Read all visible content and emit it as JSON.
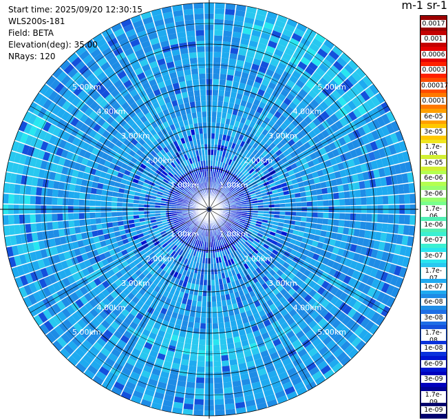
{
  "info": {
    "start_time": "Start time: 2025/09/20 12:30:15",
    "instrument": "WLS200s-181",
    "field": "Field: BETA",
    "elevation": "Elevation(deg): 35.00",
    "nrays": "NRays: 120"
  },
  "colorbar": {
    "title": "m-1 sr-1",
    "labels": [
      "0.0017",
      "0.001",
      "0.0006",
      "0.0003",
      "0.00017",
      "0.0001",
      "6e-05",
      "3e-05",
      "1.7e-05",
      "1e-05",
      "6e-06",
      "3e-06",
      "1.7e-06",
      "1e-06",
      "6e-07",
      "3e-07",
      "1.7e-07",
      "1e-07",
      "6e-08",
      "3e-08",
      "1.7e-08",
      "1e-08",
      "6e-09",
      "3e-09",
      "1.7e-09",
      "1e-09"
    ],
    "colors": [
      "#9c0000",
      "#c40000",
      "#e60000",
      "#ff2000",
      "#ff4b00",
      "#ff7800",
      "#ffa000",
      "#ffc800",
      "#f0e61e",
      "#d2f032",
      "#b4ff50",
      "#96ff6e",
      "#78ff8c",
      "#50f0b4",
      "#3cf0d2",
      "#28e6f0",
      "#28c8f0",
      "#1eaaf0",
      "#1e8ce6",
      "#1e6ee6",
      "#1450dc",
      "#0a32dc",
      "#0014d2",
      "#0000be",
      "#000096",
      "#00006e"
    ]
  },
  "chart_data": {
    "type": "heatmap",
    "projection": "polar PPI (plan position indicator)",
    "title": "",
    "quantity": "BETA",
    "units": "m-1 sr-1",
    "nrays": 120,
    "max_range_km": 5.0,
    "range_rings_km": [
      1.0,
      2.0,
      3.0,
      4.0,
      5.0
    ],
    "ring_labels": [
      "1.00km",
      "2.00km",
      "3.00km",
      "4.00km",
      "5.00km"
    ],
    "color_scale": "log",
    "value_range": [
      1e-09,
      0.0017
    ],
    "typical_value": "1e-07 to 6e-08 (light blue)",
    "features": [
      {
        "region": "north-east, 4.0–5.0 km",
        "approx_value": "1.7e-07"
      },
      {
        "region": "west, 4.2–5.0 km",
        "approx_value": "1.7e-07"
      },
      {
        "region": "south, 3.0–4.0 km",
        "approx_value": "1.7e-07"
      },
      {
        "region": "center, 0–1.0 km",
        "approx_value": "1e-08"
      }
    ]
  }
}
